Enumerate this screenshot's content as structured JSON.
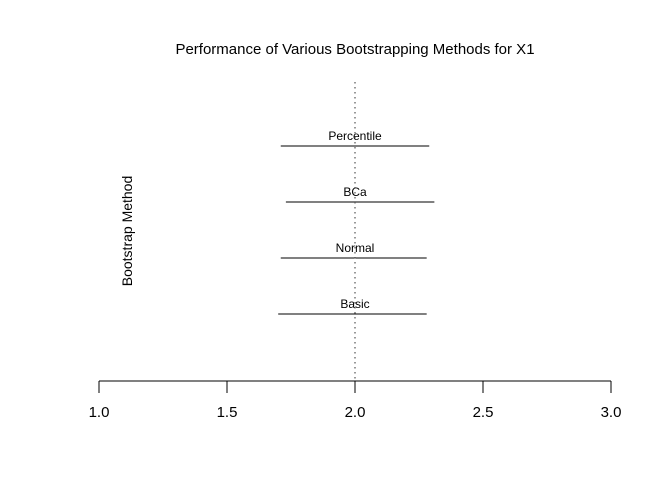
{
  "chart_data": {
    "type": "interval",
    "title": "Performance of Various Bootstrapping Methods for X1",
    "xlabel": "",
    "ylabel": "Bootstrap Method",
    "xlim": [
      1.0,
      3.0
    ],
    "x_ticks": [
      1.0,
      1.5,
      2.0,
      2.5,
      3.0
    ],
    "x_tick_labels": [
      "1.0",
      "1.5",
      "2.0",
      "2.5",
      "3.0"
    ],
    "reference_line": {
      "x": 2.0,
      "style": "dotted"
    },
    "series": [
      {
        "name": "Percentile",
        "lower": 1.71,
        "upper": 2.29
      },
      {
        "name": "BCa",
        "lower": 1.73,
        "upper": 2.31
      },
      {
        "name": "Normal",
        "lower": 1.71,
        "upper": 2.28
      },
      {
        "name": "Basic",
        "lower": 1.7,
        "upper": 2.28
      }
    ],
    "grid": false
  }
}
